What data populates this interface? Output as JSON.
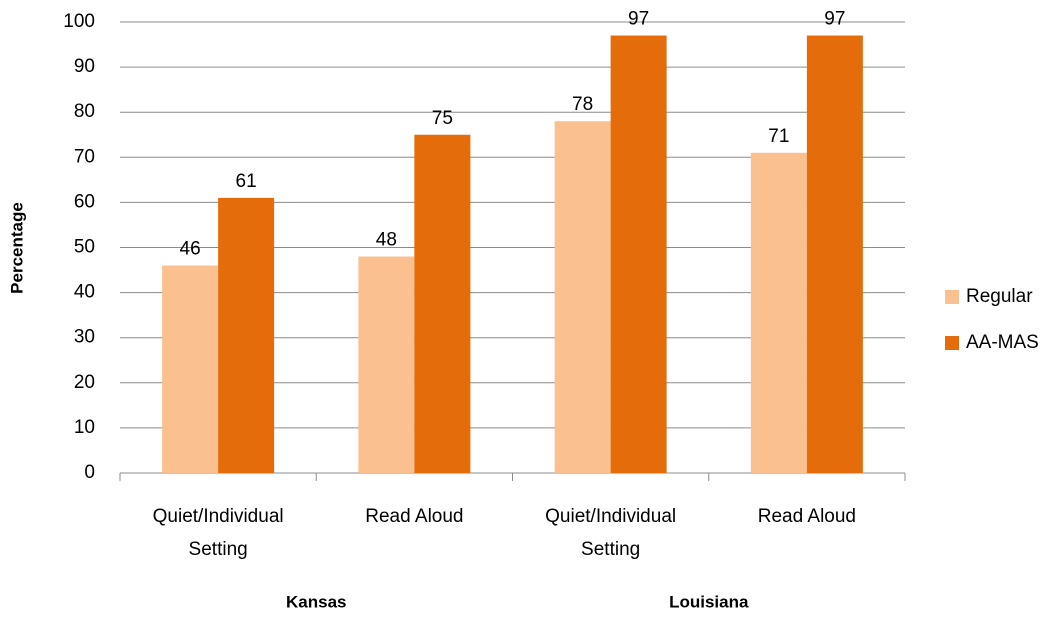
{
  "chart_data": {
    "type": "bar",
    "y_label": "Percentage",
    "categories": [
      [
        "Quiet/Individual",
        "Setting"
      ],
      [
        "Read Aloud"
      ],
      [
        "Quiet/Individual",
        "Setting"
      ],
      [
        "Read Aloud"
      ]
    ],
    "group_labels": [
      "Kansas",
      "Louisiana"
    ],
    "series": [
      {
        "name": "Regular",
        "color": "#fac090",
        "values": [
          46,
          48,
          78,
          71
        ]
      },
      {
        "name": "AA-MAS",
        "color": "#e46c0a",
        "values": [
          61,
          75,
          97,
          97
        ]
      }
    ],
    "ylim": [
      0,
      100
    ],
    "yticks": [
      0,
      10,
      20,
      30,
      40,
      50,
      60,
      70,
      80,
      90,
      100
    ],
    "grid": true,
    "legend": "right"
  }
}
